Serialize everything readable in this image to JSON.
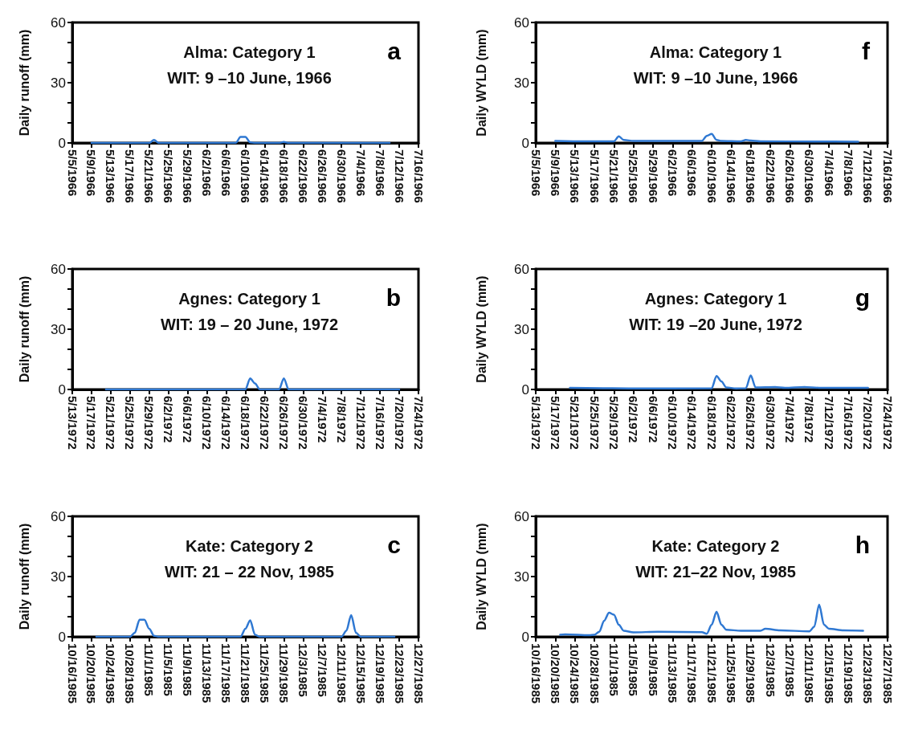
{
  "chart_data": [
    {
      "type": "line",
      "title": "Alma: Category 1",
      "subtitle": "WIT: 9 –10 June, 1966",
      "annotations": [
        "a"
      ],
      "ylabel": "Daily runoff (mm)",
      "marker": "none",
      "series": [
        {
          "color": "#2f78d2",
          "x": [
            "1966-05-09",
            "1966-05-21",
            "1966-05-22",
            "1966-05-23",
            "1966-06-08",
            "1966-06-09",
            "1966-06-10",
            "1966-06-11",
            "1966-06-12",
            "1966-06-17",
            "1966-06-18",
            "1966-06-19",
            "1966-07-10"
          ],
          "values": [
            0,
            0,
            1.5,
            0,
            0,
            3,
            3,
            0.3,
            0,
            0,
            0.5,
            0,
            0
          ]
        }
      ],
      "xlim": [
        "1966-05-05",
        "1966-07-16"
      ],
      "xticks": [
        {
          "value": "1966-05-05",
          "label": "5/5/1966"
        },
        {
          "value": "1966-05-09",
          "label": "5/9/1966"
        },
        {
          "value": "1966-05-13",
          "label": "5/13/1966"
        },
        {
          "value": "1966-05-17",
          "label": "5/17/1966"
        },
        {
          "value": "1966-05-21",
          "label": "5/21/1966"
        },
        {
          "value": "1966-05-25",
          "label": "5/25/1966"
        },
        {
          "value": "1966-05-29",
          "label": "5/29/1966"
        },
        {
          "value": "1966-06-02",
          "label": "6/2/1966"
        },
        {
          "value": "1966-06-06",
          "label": "6/6/1966"
        },
        {
          "value": "1966-06-10",
          "label": "6/10/1966"
        },
        {
          "value": "1966-06-14",
          "label": "6/14/1966"
        },
        {
          "value": "1966-06-18",
          "label": "6/18/1966"
        },
        {
          "value": "1966-06-22",
          "label": "6/22/1966"
        },
        {
          "value": "1966-06-26",
          "label": "6/26/1966"
        },
        {
          "value": "1966-06-30",
          "label": "6/30/1966"
        },
        {
          "value": "1966-07-04",
          "label": "7/4/1966"
        },
        {
          "value": "1966-07-08",
          "label": "7/8/1966"
        },
        {
          "value": "1966-07-12",
          "label": "7/12/1966"
        },
        {
          "value": "1966-07-16",
          "label": "7/16/1966"
        }
      ],
      "ylim": [
        0,
        60
      ],
      "yticks": [
        0,
        {
          "value": 10,
          "label": null
        },
        {
          "value": 20,
          "label": null
        },
        30,
        {
          "value": 40,
          "label": null
        },
        {
          "value": 50,
          "label": null
        },
        60
      ]
    },
    {
      "type": "line",
      "title": "Alma: Category 1",
      "subtitle": "WIT: 9 –10 June, 1966",
      "annotations": [
        "f"
      ],
      "ylabel": "Daily WYLD (mm)",
      "marker": "none",
      "series": [
        {
          "color": "#2f78d2",
          "x": [
            "1966-05-09",
            "1966-05-15",
            "1966-05-21",
            "1966-05-22",
            "1966-05-23",
            "1966-05-25",
            "1966-06-08",
            "1966-06-09",
            "1966-06-10",
            "1966-06-11",
            "1966-06-12",
            "1966-06-16",
            "1966-06-17",
            "1966-06-18",
            "1966-06-20",
            "1966-07-01",
            "1966-07-10"
          ],
          "values": [
            1,
            0.8,
            0.8,
            3.3,
            1.5,
            1,
            1,
            3.5,
            4.5,
            1.5,
            1,
            0.8,
            1.5,
            1.2,
            0.8,
            0.7,
            0.6
          ]
        }
      ],
      "xlim": [
        "1966-05-05",
        "1966-07-16"
      ],
      "xticks": [
        {
          "value": "1966-05-05",
          "label": "5/5/1966"
        },
        {
          "value": "1966-05-09",
          "label": "5/9/1966"
        },
        {
          "value": "1966-05-13",
          "label": "5/13/1966"
        },
        {
          "value": "1966-05-17",
          "label": "5/17/1966"
        },
        {
          "value": "1966-05-21",
          "label": "5/21/1966"
        },
        {
          "value": "1966-05-25",
          "label": "5/25/1966"
        },
        {
          "value": "1966-05-29",
          "label": "5/29/1966"
        },
        {
          "value": "1966-06-02",
          "label": "6/2/1966"
        },
        {
          "value": "1966-06-06",
          "label": "6/6/1966"
        },
        {
          "value": "1966-06-10",
          "label": "6/10/1966"
        },
        {
          "value": "1966-06-14",
          "label": "6/14/1966"
        },
        {
          "value": "1966-06-18",
          "label": "6/18/1966"
        },
        {
          "value": "1966-06-22",
          "label": "6/22/1966"
        },
        {
          "value": "1966-06-26",
          "label": "6/26/1966"
        },
        {
          "value": "1966-06-30",
          "label": "6/30/1966"
        },
        {
          "value": "1966-07-04",
          "label": "7/4/1966"
        },
        {
          "value": "1966-07-08",
          "label": "7/8/1966"
        },
        {
          "value": "1966-07-12",
          "label": "7/12/1966"
        },
        {
          "value": "1966-07-16",
          "label": "7/16/1966"
        }
      ],
      "ylim": [
        0,
        60
      ],
      "yticks": [
        0,
        {
          "value": 10,
          "label": null
        },
        {
          "value": 20,
          "label": null
        },
        30,
        {
          "value": 40,
          "label": null
        },
        {
          "value": 50,
          "label": null
        },
        60
      ]
    },
    {
      "type": "line",
      "title": "Agnes: Category 1",
      "subtitle": "WIT: 19 – 20 June, 1972",
      "annotations": [
        "b"
      ],
      "ylabel": "Daily runoff (mm)",
      "marker": "none",
      "series": [
        {
          "color": "#2f78d2",
          "x": [
            "1972-05-20",
            "1972-06-18",
            "1972-06-19",
            "1972-06-20",
            "1972-06-21",
            "1972-06-25",
            "1972-06-26",
            "1972-06-27",
            "1972-07-20"
          ],
          "values": [
            0,
            0,
            5.5,
            3,
            0,
            0,
            5.5,
            0,
            0
          ]
        }
      ],
      "xlim": [
        "1972-05-13",
        "1972-07-24"
      ],
      "xticks": [
        {
          "value": "1972-05-13",
          "label": "5/13/1972"
        },
        {
          "value": "1972-05-17",
          "label": "5/17/1972"
        },
        {
          "value": "1972-05-21",
          "label": "5/21/1972"
        },
        {
          "value": "1972-05-25",
          "label": "5/25/1972"
        },
        {
          "value": "1972-05-29",
          "label": "5/29/1972"
        },
        {
          "value": "1972-06-02",
          "label": "6/2/1972"
        },
        {
          "value": "1972-06-06",
          "label": "6/6/1972"
        },
        {
          "value": "1972-06-10",
          "label": "6/10/1972"
        },
        {
          "value": "1972-06-14",
          "label": "6/14/1972"
        },
        {
          "value": "1972-06-18",
          "label": "6/18/1972"
        },
        {
          "value": "1972-06-22",
          "label": "6/22/1972"
        },
        {
          "value": "1972-06-26",
          "label": "6/26/1972"
        },
        {
          "value": "1972-06-30",
          "label": "6/30/1972"
        },
        {
          "value": "1972-07-04",
          "label": "7/4/1972"
        },
        {
          "value": "1972-07-08",
          "label": "7/8/1972"
        },
        {
          "value": "1972-07-12",
          "label": "7/12/1972"
        },
        {
          "value": "1972-07-16",
          "label": "7/16/1972"
        },
        {
          "value": "1972-07-20",
          "label": "7/20/1972"
        },
        {
          "value": "1972-07-24",
          "label": "7/24/1972"
        }
      ],
      "ylim": [
        0,
        60
      ],
      "yticks": [
        0,
        {
          "value": 10,
          "label": null
        },
        {
          "value": 20,
          "label": null
        },
        30,
        {
          "value": 40,
          "label": null
        },
        {
          "value": 50,
          "label": null
        },
        60
      ]
    },
    {
      "type": "line",
      "title": "Agnes: Category 1",
      "subtitle": "WIT: 19 –20 June, 1972",
      "annotations": [
        "g"
      ],
      "ylabel": "Daily WYLD (mm)",
      "marker": "none",
      "series": [
        {
          "color": "#2f78d2",
          "x": [
            "1972-05-20",
            "1972-06-01",
            "1972-06-18",
            "1972-06-19",
            "1972-06-20",
            "1972-06-21",
            "1972-06-23",
            "1972-06-25",
            "1972-06-26",
            "1972-06-27",
            "1972-07-01",
            "1972-07-03",
            "1972-07-07",
            "1972-07-10",
            "1972-07-20"
          ],
          "values": [
            0.8,
            0.5,
            0.6,
            6.7,
            4,
            1,
            0.5,
            0.6,
            7,
            1,
            1.2,
            0.8,
            1.2,
            0.8,
            0.8
          ]
        }
      ],
      "xlim": [
        "1972-05-13",
        "1972-07-24"
      ],
      "xticks": [
        {
          "value": "1972-05-13",
          "label": "5/13/1972"
        },
        {
          "value": "1972-05-17",
          "label": "5/17/1972"
        },
        {
          "value": "1972-05-21",
          "label": "5/21/1972"
        },
        {
          "value": "1972-05-25",
          "label": "5/25/1972"
        },
        {
          "value": "1972-05-29",
          "label": "5/29/1972"
        },
        {
          "value": "1972-06-02",
          "label": "6/2/1972"
        },
        {
          "value": "1972-06-06",
          "label": "6/6/1972"
        },
        {
          "value": "1972-06-10",
          "label": "6/10/1972"
        },
        {
          "value": "1972-06-14",
          "label": "6/14/1972"
        },
        {
          "value": "1972-06-18",
          "label": "6/18/1972"
        },
        {
          "value": "1972-06-22",
          "label": "6/22/1972"
        },
        {
          "value": "1972-06-26",
          "label": "6/26/1972"
        },
        {
          "value": "1972-06-30",
          "label": "6/30/1972"
        },
        {
          "value": "1972-07-04",
          "label": "7/4/1972"
        },
        {
          "value": "1972-07-08",
          "label": "7/8/1972"
        },
        {
          "value": "1972-07-12",
          "label": "7/12/1972"
        },
        {
          "value": "1972-07-16",
          "label": "7/16/1972"
        },
        {
          "value": "1972-07-20",
          "label": "7/20/1972"
        },
        {
          "value": "1972-07-24",
          "label": "7/24/1972"
        }
      ],
      "ylim": [
        0,
        60
      ],
      "yticks": [
        0,
        {
          "value": 10,
          "label": null
        },
        {
          "value": 20,
          "label": null
        },
        30,
        {
          "value": 40,
          "label": null
        },
        {
          "value": 50,
          "label": null
        },
        60
      ]
    },
    {
      "type": "line",
      "title": "Kate: Category 2",
      "subtitle": "WIT: 21 – 22 Nov, 1985",
      "annotations": [
        "c"
      ],
      "ylabel": "Daily runoff (mm)",
      "marker": "none",
      "series": [
        {
          "color": "#2f78d2",
          "x": [
            "1985-10-21",
            "1985-10-28",
            "1985-10-29",
            "1985-10-30",
            "1985-10-31",
            "1985-11-01",
            "1985-11-02",
            "1985-11-03",
            "1985-11-20",
            "1985-11-21",
            "1985-11-22",
            "1985-11-23",
            "1985-11-24",
            "1985-12-11",
            "1985-12-12",
            "1985-12-13",
            "1985-12-14",
            "1985-12-15",
            "1985-12-22"
          ],
          "values": [
            0,
            0,
            2,
            8.5,
            8.5,
            4,
            0.5,
            0,
            0,
            4,
            8.2,
            1,
            0,
            0,
            3,
            10.8,
            2,
            0,
            0
          ]
        }
      ],
      "xlim": [
        "1985-10-16",
        "1985-12-27"
      ],
      "xticks": [
        {
          "value": "1985-10-16",
          "label": "10/16/1985"
        },
        {
          "value": "1985-10-20",
          "label": "10/20/1985"
        },
        {
          "value": "1985-10-24",
          "label": "10/24/1985"
        },
        {
          "value": "1985-10-28",
          "label": "10/28/1985"
        },
        {
          "value": "1985-11-01",
          "label": "11/1/1985"
        },
        {
          "value": "1985-11-05",
          "label": "11/5/1985"
        },
        {
          "value": "1985-11-09",
          "label": "11/9/1985"
        },
        {
          "value": "1985-11-13",
          "label": "11/13/1985"
        },
        {
          "value": "1985-11-17",
          "label": "11/17/1985"
        },
        {
          "value": "1985-11-21",
          "label": "11/21/1985"
        },
        {
          "value": "1985-11-25",
          "label": "11/25/1985"
        },
        {
          "value": "1985-11-29",
          "label": "11/29/1985"
        },
        {
          "value": "1985-12-03",
          "label": "12/3/1985"
        },
        {
          "value": "1985-12-07",
          "label": "12/7/1985"
        },
        {
          "value": "1985-12-11",
          "label": "12/11/1985"
        },
        {
          "value": "1985-12-15",
          "label": "12/15/1985"
        },
        {
          "value": "1985-12-19",
          "label": "12/19/1985"
        },
        {
          "value": "1985-12-23",
          "label": "12/23/1985"
        },
        {
          "value": "1985-12-27",
          "label": "12/27/1985"
        }
      ],
      "ylim": [
        0,
        60
      ],
      "yticks": [
        0,
        {
          "value": 10,
          "label": null
        },
        {
          "value": 20,
          "label": null
        },
        30,
        {
          "value": 40,
          "label": null
        },
        {
          "value": 50,
          "label": null
        },
        60
      ]
    },
    {
      "type": "line",
      "title": "Kate: Category 2",
      "subtitle": "WIT: 21–22 Nov, 1985",
      "annotations": [
        "h"
      ],
      "ylabel": "Daily WYLD (mm)",
      "marker": "none",
      "series": [
        {
          "color": "#2f78d2",
          "x": [
            "1985-10-21",
            "1985-10-22",
            "1985-10-27",
            "1985-10-28",
            "1985-10-29",
            "1985-10-30",
            "1985-10-31",
            "1985-11-01",
            "1985-11-02",
            "1985-11-03",
            "1985-11-05",
            "1985-11-10",
            "1985-11-19",
            "1985-11-20",
            "1985-11-21",
            "1985-11-22",
            "1985-11-23",
            "1985-11-24",
            "1985-11-27",
            "1985-12-01",
            "1985-12-02",
            "1985-12-05",
            "1985-12-11",
            "1985-12-12",
            "1985-12-13",
            "1985-12-14",
            "1985-12-15",
            "1985-12-18",
            "1985-12-22"
          ],
          "values": [
            1,
            1.2,
            0.8,
            1,
            2.5,
            8,
            12,
            11,
            6,
            3,
            2.2,
            2.5,
            2.3,
            1.5,
            6,
            12.5,
            6,
            3.5,
            3,
            3,
            4,
            3.2,
            2.7,
            5,
            16,
            6,
            4,
            3.2,
            3
          ]
        }
      ],
      "xlim": [
        "1985-10-16",
        "1985-12-27"
      ],
      "xticks": [
        {
          "value": "1985-10-16",
          "label": "10/16/1985"
        },
        {
          "value": "1985-10-20",
          "label": "10/20/1985"
        },
        {
          "value": "1985-10-24",
          "label": "10/24/1985"
        },
        {
          "value": "1985-10-28",
          "label": "10/28/1985"
        },
        {
          "value": "1985-11-01",
          "label": "11/1/1985"
        },
        {
          "value": "1985-11-05",
          "label": "11/5/1985"
        },
        {
          "value": "1985-11-09",
          "label": "11/9/1985"
        },
        {
          "value": "1985-11-13",
          "label": "11/13/1985"
        },
        {
          "value": "1985-11-17",
          "label": "11/17/1985"
        },
        {
          "value": "1985-11-21",
          "label": "11/21/1985"
        },
        {
          "value": "1985-11-25",
          "label": "11/25/1985"
        },
        {
          "value": "1985-11-29",
          "label": "11/29/1985"
        },
        {
          "value": "1985-12-03",
          "label": "12/3/1985"
        },
        {
          "value": "1985-12-07",
          "label": "12/7/1985"
        },
        {
          "value": "1985-12-11",
          "label": "12/11/1985"
        },
        {
          "value": "1985-12-15",
          "label": "12/15/1985"
        },
        {
          "value": "1985-12-19",
          "label": "12/19/1985"
        },
        {
          "value": "1985-12-23",
          "label": "12/23/1985"
        },
        {
          "value": "1985-12-27",
          "label": "12/27/1985"
        }
      ],
      "ylim": [
        0,
        60
      ],
      "yticks": [
        0,
        {
          "value": 10,
          "label": null
        },
        {
          "value": 20,
          "label": null
        },
        30,
        {
          "value": 40,
          "label": null
        },
        {
          "value": 50,
          "label": null
        },
        60
      ]
    }
  ]
}
